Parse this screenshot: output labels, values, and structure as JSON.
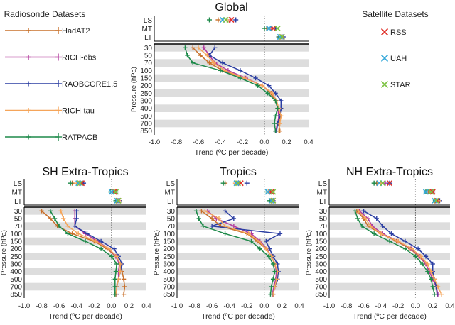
{
  "legend": {
    "radiosonde_title": "Radiosonde Datasets",
    "satellite_title": "Satellite Datasets"
  },
  "colors": {
    "HadAT2": "#c8702a",
    "RICH-obs": "#b23a9e",
    "RAOBCORE1.5": "#2c3fa3",
    "RICH-tau": "#f5a55a",
    "RATPACB": "#1e8a4a",
    "RSS": "#e0322b",
    "UAH": "#36a8d9",
    "STAR": "#7cc242",
    "band": "#dddddd"
  },
  "chart_data": {
    "type": "line",
    "radiosonde_datasets": [
      "HadAT2",
      "RICH-obs",
      "RAOBCORE1.5",
      "RICH-tau",
      "RATPACB"
    ],
    "satellite_datasets": [
      "RSS",
      "UAH",
      "STAR"
    ],
    "pressure_levels": [
      "30",
      "50",
      "70",
      "100",
      "150",
      "200",
      "250",
      "300",
      "400",
      "500",
      "700",
      "850"
    ],
    "satellite_layers": [
      "LS",
      "MT",
      "LT"
    ],
    "xlim": [
      -1.0,
      0.4
    ],
    "xticks": [
      "-1.0",
      "-0.8",
      "-0.6",
      "-0.4",
      "-0.2",
      "0.0",
      "0.2",
      "0.4"
    ],
    "xlabel": "Trend (ºC per decade)",
    "ylabel": "Pressure (hPa)",
    "panels": [
      {
        "title": "Global",
        "series": [
          {
            "name": "HadAT2",
            "values": [
              -0.65,
              -0.58,
              -0.5,
              -0.38,
              -0.18,
              -0.02,
              0.06,
              0.1,
              0.12,
              0.14,
              0.13,
              0.14
            ]
          },
          {
            "name": "RICH-obs",
            "values": [
              -0.55,
              -0.5,
              -0.45,
              -0.33,
              -0.17,
              -0.02,
              0.07,
              0.11,
              0.12,
              0.13,
              0.12,
              0.1
            ]
          },
          {
            "name": "RAOBCORE1.5",
            "values": [
              -0.45,
              -0.5,
              -0.38,
              -0.22,
              -0.08,
              0.04,
              0.1,
              0.15,
              0.15,
              0.14,
              0.12,
              0.11
            ]
          },
          {
            "name": "RICH-tau",
            "values": [
              -0.6,
              -0.52,
              -0.46,
              -0.36,
              -0.18,
              -0.02,
              0.07,
              0.11,
              0.13,
              0.15,
              0.14,
              0.13
            ]
          },
          {
            "name": "RATPACB",
            "values": [
              -0.72,
              -0.7,
              -0.65,
              -0.4,
              -0.22,
              -0.06,
              0.03,
              0.1,
              0.12,
              0.1,
              0.09,
              0.1
            ]
          }
        ],
        "satellite": [
          {
            "name": "RSS",
            "LS": -0.3,
            "MT": 0.08,
            "LT": 0.16
          },
          {
            "name": "UAH",
            "LS": -0.38,
            "MT": 0.04,
            "LT": 0.14
          },
          {
            "name": "STAR",
            "LS": -0.35,
            "MT": 0.12,
            "LT": 0.16
          }
        ],
        "radiosonde_satellite": [
          {
            "name": "HadAT2",
            "LS": -0.42,
            "MT": 0.02,
            "LT": 0.15
          },
          {
            "name": "RICH-obs",
            "LS": -0.31,
            "MT": 0.06,
            "LT": 0.13
          },
          {
            "name": "RAOBCORE1.5",
            "LS": -0.26,
            "MT": 0.1,
            "LT": 0.17
          },
          {
            "name": "RICH-tau",
            "LS": -0.34,
            "MT": 0.07,
            "LT": 0.15
          },
          {
            "name": "RATPACB",
            "LS": -0.5,
            "MT": 0.0,
            "LT": 0.13
          }
        ]
      },
      {
        "title": "SH Extra-Tropics",
        "series": [
          {
            "name": "HadAT2",
            "values": [
              -0.8,
              -0.7,
              -0.62,
              -0.45,
              -0.2,
              -0.05,
              0.05,
              0.1,
              0.12,
              0.14,
              0.15,
              0.14
            ]
          },
          {
            "name": "RICH-obs",
            "values": [
              -0.42,
              -0.42,
              -0.42,
              -0.3,
              -0.16,
              -0.03,
              0.05,
              0.09,
              0.08,
              0.08,
              0.06,
              0.06
            ]
          },
          {
            "name": "RAOBCORE1.5",
            "values": [
              -0.4,
              -0.4,
              -0.42,
              -0.28,
              -0.12,
              0.03,
              0.08,
              0.12,
              0.1,
              0.08,
              0.06,
              0.06
            ]
          },
          {
            "name": "RICH-tau",
            "values": [
              -0.58,
              -0.55,
              -0.5,
              -0.38,
              -0.18,
              -0.03,
              0.06,
              0.1,
              0.1,
              0.08,
              0.06,
              0.05
            ]
          },
          {
            "name": "RATPACB",
            "values": [
              -0.7,
              -0.65,
              -0.6,
              -0.5,
              -0.3,
              -0.12,
              0.0,
              0.06,
              0.05,
              0.04,
              0.04,
              0.04
            ]
          }
        ],
        "satellite": [
          {
            "name": "RSS",
            "LS": -0.34,
            "MT": 0.03,
            "LT": 0.08
          },
          {
            "name": "UAH",
            "LS": -0.38,
            "MT": 0.0,
            "LT": 0.06
          },
          {
            "name": "STAR",
            "LS": -0.36,
            "MT": 0.05,
            "LT": 0.08
          }
        ],
        "radiosonde_satellite": [
          {
            "name": "HadAT2",
            "LS": -0.45,
            "MT": 0.02,
            "LT": 0.09
          },
          {
            "name": "RICH-obs",
            "LS": -0.33,
            "MT": 0.03,
            "LT": 0.07
          },
          {
            "name": "RAOBCORE1.5",
            "LS": -0.32,
            "MT": 0.05,
            "LT": 0.09
          },
          {
            "name": "RICH-tau",
            "LS": -0.4,
            "MT": 0.04,
            "LT": 0.08
          },
          {
            "name": "RATPACB",
            "LS": -0.47,
            "MT": -0.01,
            "LT": 0.05
          }
        ]
      },
      {
        "title": "Tropics",
        "series": [
          {
            "name": "HadAT2",
            "values": [
              -0.72,
              -0.6,
              -0.5,
              -0.2,
              -0.08,
              0.02,
              0.08,
              0.12,
              0.14,
              0.15,
              0.12,
              0.1
            ]
          },
          {
            "name": "RICH-obs",
            "values": [
              -0.65,
              -0.55,
              -0.35,
              -0.15,
              -0.05,
              0.03,
              0.08,
              0.12,
              0.14,
              0.13,
              0.11,
              0.09
            ]
          },
          {
            "name": "RAOBCORE1.5",
            "values": [
              -0.45,
              -0.35,
              -0.6,
              0.18,
              0.02,
              0.06,
              0.1,
              0.15,
              0.16,
              0.15,
              0.12,
              0.1
            ]
          },
          {
            "name": "RICH-tau",
            "values": [
              -0.68,
              -0.52,
              -0.45,
              -0.18,
              -0.06,
              0.02,
              0.08,
              0.12,
              0.15,
              0.14,
              0.12,
              0.1
            ]
          },
          {
            "name": "RATPACB",
            "values": [
              -0.78,
              -0.75,
              -0.7,
              -0.45,
              -0.15,
              -0.05,
              0.05,
              0.1,
              0.12,
              0.1,
              0.08,
              0.07
            ]
          }
        ],
        "satellite": [
          {
            "name": "RSS",
            "LS": -0.27,
            "MT": 0.08,
            "LT": 0.1
          },
          {
            "name": "UAH",
            "LS": -0.32,
            "MT": 0.04,
            "LT": 0.08
          },
          {
            "name": "STAR",
            "LS": -0.3,
            "MT": 0.1,
            "LT": 0.1
          }
        ],
        "radiosonde_satellite": [
          {
            "name": "HadAT2",
            "LS": -0.45,
            "MT": 0.05,
            "LT": 0.09
          },
          {
            "name": "RICH-obs",
            "LS": -0.3,
            "MT": 0.06,
            "LT": 0.08
          },
          {
            "name": "RAOBCORE1.5",
            "LS": -0.2,
            "MT": 0.07,
            "LT": 0.1
          },
          {
            "name": "RICH-tau",
            "LS": -0.33,
            "MT": 0.06,
            "LT": 0.09
          },
          {
            "name": "RATPACB",
            "LS": -0.47,
            "MT": 0.03,
            "LT": 0.06
          }
        ]
      },
      {
        "title": "NH Extra-Tropics",
        "series": [
          {
            "name": "HadAT2",
            "values": [
              -0.68,
              -0.6,
              -0.55,
              -0.4,
              -0.22,
              -0.06,
              0.04,
              0.12,
              0.16,
              0.2,
              0.24,
              0.25
            ]
          },
          {
            "name": "RICH-obs",
            "values": [
              -0.65,
              -0.55,
              -0.5,
              -0.38,
              -0.2,
              -0.05,
              0.05,
              0.12,
              0.16,
              0.2,
              0.24,
              0.26
            ]
          },
          {
            "name": "RAOBCORE1.5",
            "values": [
              -0.6,
              -0.45,
              -0.38,
              -0.28,
              -0.12,
              0.03,
              0.12,
              0.2,
              0.2,
              0.22,
              0.24,
              0.25
            ]
          },
          {
            "name": "RICH-tau",
            "values": [
              -0.66,
              -0.58,
              -0.52,
              -0.4,
              -0.2,
              -0.04,
              0.06,
              0.14,
              0.18,
              0.22,
              0.26,
              0.3
            ]
          },
          {
            "name": "RATPACB",
            "values": [
              -0.7,
              -0.67,
              -0.62,
              -0.48,
              -0.3,
              -0.12,
              0.0,
              0.08,
              0.14,
              0.18,
              0.2,
              0.22
            ]
          }
        ],
        "satellite": [
          {
            "name": "RSS",
            "LS": -0.3,
            "MT": 0.2,
            "LT": 0.25
          },
          {
            "name": "UAH",
            "LS": -0.42,
            "MT": 0.12,
            "LT": 0.22
          },
          {
            "name": "STAR",
            "LS": -0.38,
            "MT": 0.18,
            "LT": 0.24
          }
        ],
        "radiosonde_satellite": [
          {
            "name": "HadAT2",
            "LS": -0.45,
            "MT": 0.15,
            "LT": 0.27
          },
          {
            "name": "RICH-obs",
            "LS": -0.35,
            "MT": 0.16,
            "LT": 0.26
          },
          {
            "name": "RAOBCORE1.5",
            "LS": -0.3,
            "MT": 0.2,
            "LT": 0.28
          },
          {
            "name": "RICH-tau",
            "LS": -0.4,
            "MT": 0.17,
            "LT": 0.27
          },
          {
            "name": "RATPACB",
            "LS": -0.48,
            "MT": 0.12,
            "LT": 0.23
          }
        ]
      }
    ]
  }
}
